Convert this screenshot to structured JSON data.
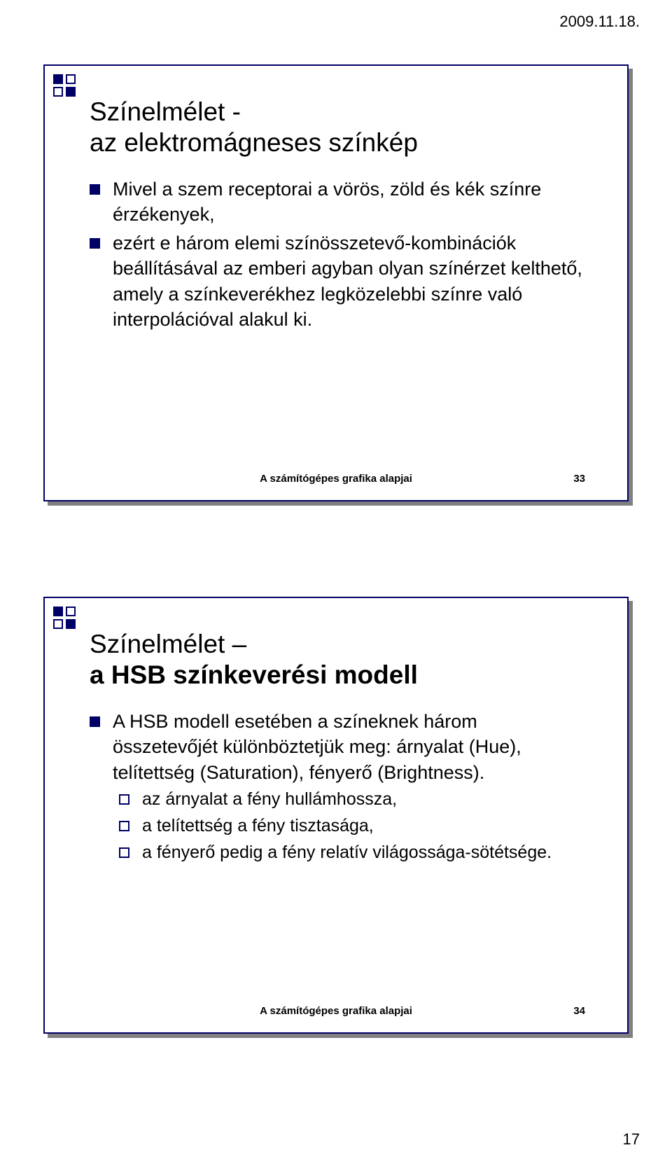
{
  "header_date": "2009.11.18.",
  "page_number": "17",
  "slides": [
    {
      "title_line1": "Színelmélet -",
      "title_line2": "az elektromágneses színkép",
      "bullets": [
        "Mivel a szem receptorai a vörös, zöld és kék színre érzékenyek,",
        "ezért e három elemi színösszetevő-kombinációk beállításával az emberi agyban olyan színérzet kelthető, amely a színkeverékhez legközelebbi színre való interpolációval alakul ki."
      ],
      "footer_text": "A számítógépes grafika alapjai",
      "footer_num": "33"
    },
    {
      "title_line1": "Színelmélet –",
      "title_line2": "a HSB színkeverési modell",
      "bullets": [
        "A HSB modell esetében a színeknek három összetevőjét különböztetjük meg: árnyalat (Hue), telítettség (Saturation), fényerő (Brightness)."
      ],
      "subbullets": [
        "az árnyalat a fény hullámhossza,",
        "a telítettség a fény tisztasága,",
        "a fényerő pedig a fény relatív világossága-sötétsége."
      ],
      "footer_text": "A számítógépes grafika alapjai",
      "footer_num": "34"
    }
  ],
  "colors": {
    "accent": "#000066",
    "shadow": "#808080",
    "bg": "#ffffff",
    "text": "#000000"
  }
}
